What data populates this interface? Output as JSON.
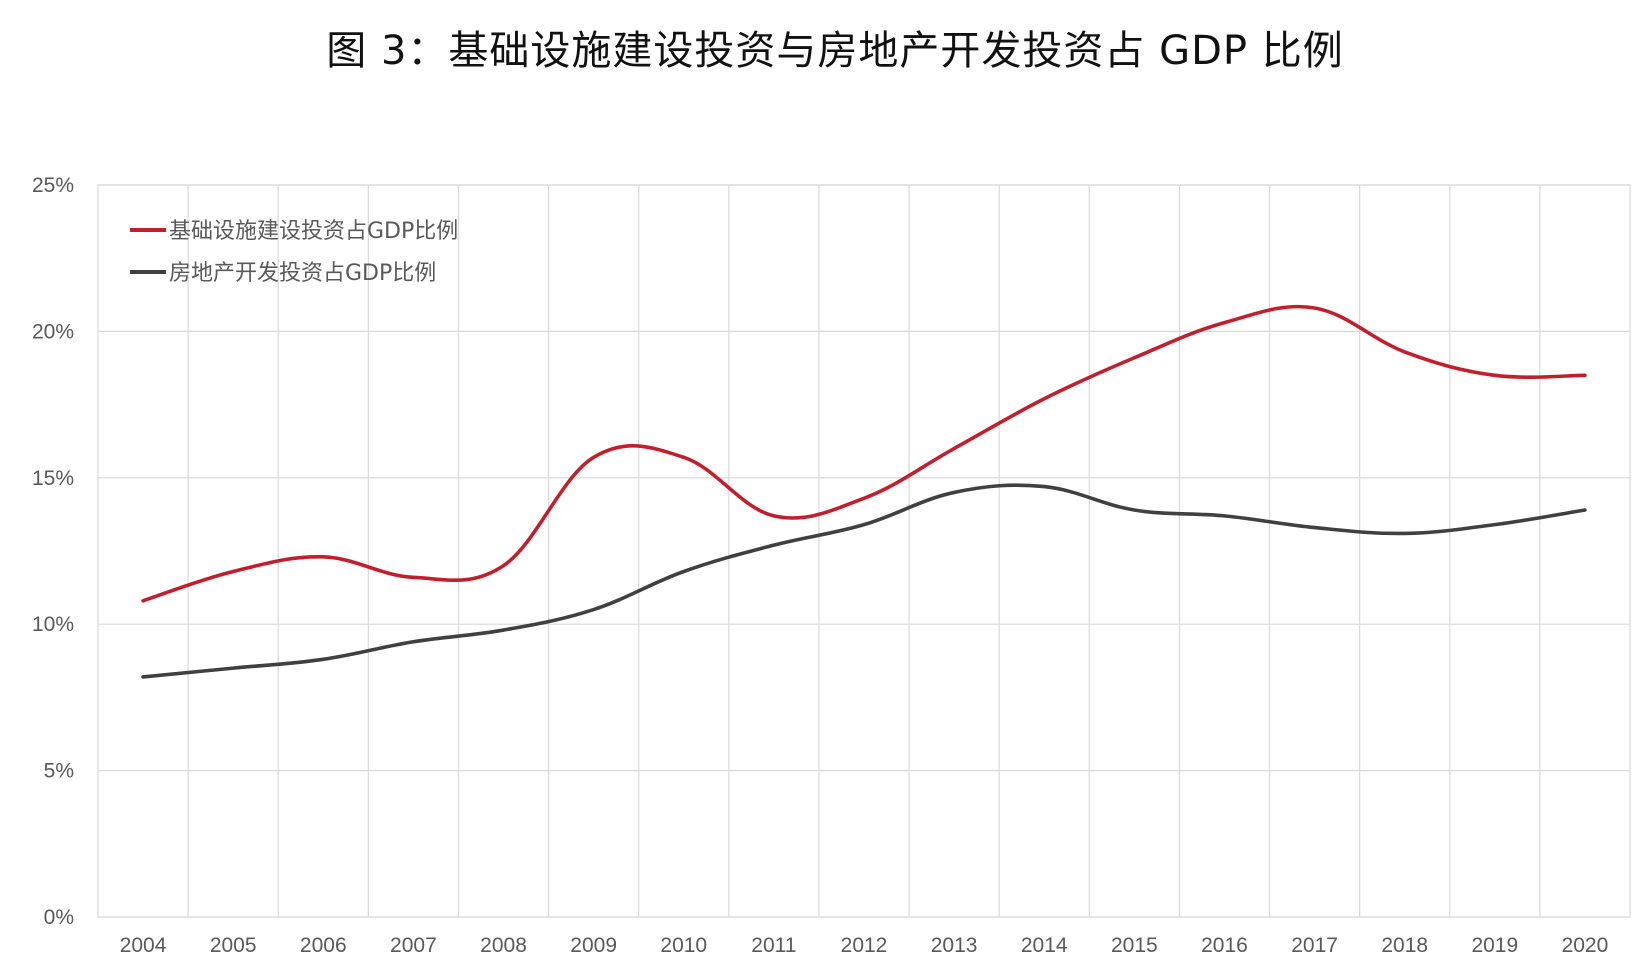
{
  "title": "图 3：基础设施建设投资与房地产开发投资占 GDP 比例",
  "chart_data": {
    "type": "line",
    "title": "图 3：基础设施建设投资与房地产开发投资占 GDP 比例",
    "xlabel": "",
    "ylabel": "",
    "categories": [
      "2004",
      "2005",
      "2006",
      "2007",
      "2008",
      "2009",
      "2010",
      "2011",
      "2012",
      "2013",
      "2014",
      "2015",
      "2016",
      "2017",
      "2018",
      "2019",
      "2020"
    ],
    "y_ticks": [
      "0%",
      "5%",
      "10%",
      "15%",
      "20%",
      "25%"
    ],
    "y_tick_values": [
      0,
      5,
      10,
      15,
      20,
      25
    ],
    "ylim": [
      0,
      25
    ],
    "grid": "both",
    "smooth": true,
    "legend_position": "top-left",
    "series": [
      {
        "name": "基础设施建设投资占GDP比例",
        "color": "#C0202E",
        "values": [
          10.8,
          11.8,
          12.3,
          11.6,
          12.0,
          15.7,
          15.7,
          13.7,
          14.3,
          16.0,
          17.7,
          19.1,
          20.3,
          20.8,
          19.3,
          18.5,
          18.5
        ]
      },
      {
        "name": "房地产开发投资占GDP比例",
        "color": "#404040",
        "values": [
          8.2,
          8.5,
          8.8,
          9.4,
          9.8,
          10.5,
          11.8,
          12.7,
          13.4,
          14.5,
          14.7,
          13.9,
          13.7,
          13.3,
          13.1,
          13.4,
          13.9
        ]
      }
    ]
  }
}
